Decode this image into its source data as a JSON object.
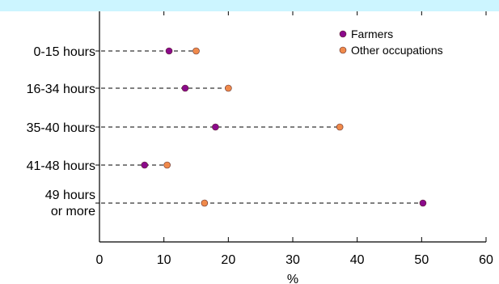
{
  "chart_data": {
    "type": "scatter",
    "title": "",
    "xlabel": "%",
    "ylabel": "",
    "xlim": [
      0,
      60
    ],
    "xticks": [
      "0",
      "10",
      "20",
      "30",
      "40",
      "50",
      "60"
    ],
    "grid": false,
    "legend_position": "top-right",
    "categories": [
      [
        "0-15 hours"
      ],
      [
        "16-34 hours"
      ],
      [
        "35-40 hours"
      ],
      [
        "41-48 hours"
      ],
      [
        "49 hours",
        "or more"
      ]
    ],
    "series": [
      {
        "name": "Farmers",
        "color": "#8b0a8b",
        "values": [
          10.8,
          13.3,
          18.0,
          7.0,
          50.2
        ]
      },
      {
        "name": "Other occupations",
        "color": "#f08a4b",
        "values": [
          15.0,
          20.0,
          37.3,
          10.5,
          16.3
        ]
      }
    ],
    "colors": {
      "banner": "#ccf5ff",
      "axis": "#000000"
    }
  }
}
